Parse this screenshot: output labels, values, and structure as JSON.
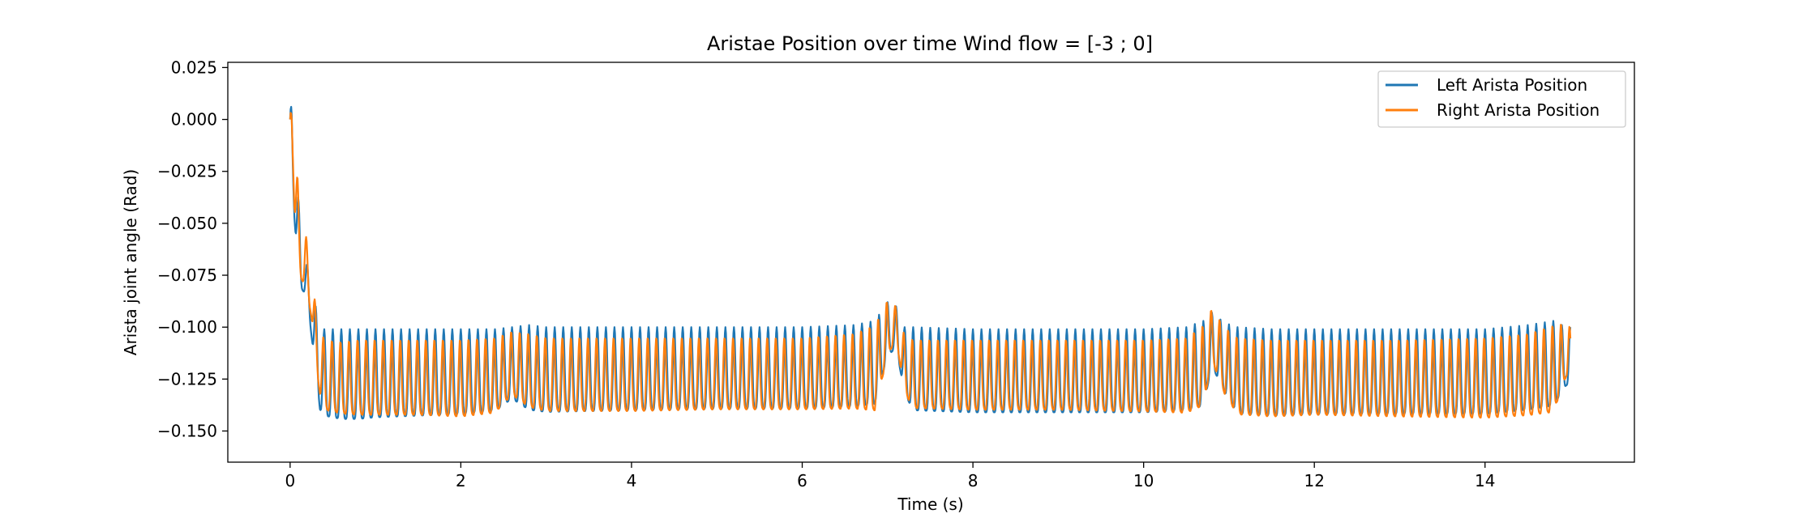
{
  "chart_data": {
    "type": "line",
    "title": "Aristae Position over time Wind flow = [-3 ; 0]",
    "xlabel": "Time (s)",
    "ylabel": "Arista joint angle (Rad)",
    "xlim": [
      -0.73,
      15.75
    ],
    "ylim": [
      -0.165,
      0.0275
    ],
    "xticks": [
      0,
      2,
      4,
      6,
      8,
      10,
      12,
      14
    ],
    "xtick_labels": [
      "0",
      "2",
      "4",
      "6",
      "8",
      "10",
      "12",
      "14"
    ],
    "yticks": [
      0.025,
      0.0,
      -0.025,
      -0.05,
      -0.075,
      -0.1,
      -0.125,
      -0.15
    ],
    "ytick_labels": [
      "0.025",
      "0.000",
      "−0.025",
      "−0.050",
      "−0.075",
      "−0.100",
      "−0.125",
      "−0.150"
    ],
    "grid": false,
    "legend_position": "top-right",
    "oscillation_period_s": 0.1,
    "series": [
      {
        "name": "Left Arista Position",
        "color": "#1f77b4",
        "envelope_time": [
          0.0,
          0.02,
          0.05,
          0.1,
          0.15,
          0.2,
          0.25,
          0.3,
          0.35,
          0.4,
          0.6,
          0.8,
          1.0,
          1.5,
          2.0,
          2.4,
          2.6,
          2.8,
          3.0,
          4.0,
          5.0,
          6.0,
          6.6,
          6.85,
          7.0,
          7.1,
          7.2,
          7.3,
          8.0,
          9.0,
          10.0,
          10.5,
          10.7,
          10.8,
          10.95,
          11.1,
          11.5,
          12.0,
          13.0,
          14.0,
          14.5,
          14.8,
          14.95,
          15.0
        ],
        "envelope_upper": [
          0.0,
          0.018,
          0.005,
          -0.04,
          -0.06,
          -0.07,
          -0.08,
          -0.09,
          -0.098,
          -0.101,
          -0.101,
          -0.101,
          -0.101,
          -0.101,
          -0.101,
          -0.101,
          -0.1,
          -0.099,
          -0.1,
          -0.1,
          -0.1,
          -0.1,
          -0.099,
          -0.097,
          -0.088,
          -0.09,
          -0.1,
          -0.1,
          -0.101,
          -0.101,
          -0.101,
          -0.1,
          -0.097,
          -0.093,
          -0.098,
          -0.1,
          -0.101,
          -0.101,
          -0.101,
          -0.101,
          -0.099,
          -0.097,
          -0.1,
          -0.1
        ],
        "envelope_lower": [
          0.0,
          -0.02,
          -0.06,
          -0.09,
          -0.088,
          -0.09,
          -0.11,
          -0.13,
          -0.15,
          -0.153,
          -0.155,
          -0.155,
          -0.154,
          -0.153,
          -0.152,
          -0.15,
          -0.143,
          -0.15,
          -0.151,
          -0.15,
          -0.149,
          -0.149,
          -0.148,
          -0.147,
          -0.12,
          -0.115,
          -0.14,
          -0.15,
          -0.151,
          -0.151,
          -0.151,
          -0.15,
          -0.148,
          -0.125,
          -0.14,
          -0.152,
          -0.153,
          -0.152,
          -0.152,
          -0.152,
          -0.15,
          -0.148,
          -0.135,
          -0.135
        ]
      },
      {
        "name": "Right Arista Position",
        "color": "#ff7f0e",
        "envelope_time": [
          0.0,
          0.02,
          0.05,
          0.1,
          0.15,
          0.2,
          0.25,
          0.3,
          0.35,
          0.4,
          0.6,
          0.8,
          1.0,
          1.5,
          2.0,
          2.4,
          2.6,
          2.8,
          3.0,
          4.0,
          5.0,
          6.0,
          6.6,
          6.85,
          7.0,
          7.1,
          7.2,
          7.3,
          8.0,
          9.0,
          10.0,
          10.5,
          10.7,
          10.8,
          10.95,
          11.1,
          11.5,
          12.0,
          13.0,
          14.0,
          14.5,
          14.8,
          14.95,
          15.0
        ],
        "envelope_upper": [
          0.0,
          0.02,
          0.008,
          -0.04,
          -0.045,
          -0.06,
          -0.075,
          -0.09,
          -0.1,
          -0.106,
          -0.107,
          -0.106,
          -0.106,
          -0.106,
          -0.106,
          -0.105,
          -0.102,
          -0.103,
          -0.105,
          -0.105,
          -0.105,
          -0.105,
          -0.103,
          -0.099,
          -0.087,
          -0.09,
          -0.104,
          -0.106,
          -0.106,
          -0.106,
          -0.106,
          -0.105,
          -0.099,
          -0.091,
          -0.1,
          -0.105,
          -0.106,
          -0.106,
          -0.106,
          -0.105,
          -0.103,
          -0.099,
          -0.098,
          -0.1
        ],
        "envelope_lower": [
          0.0,
          -0.01,
          -0.055,
          -0.085,
          -0.086,
          -0.09,
          -0.1,
          -0.125,
          -0.14,
          -0.148,
          -0.15,
          -0.151,
          -0.151,
          -0.151,
          -0.152,
          -0.15,
          -0.14,
          -0.147,
          -0.149,
          -0.149,
          -0.148,
          -0.148,
          -0.148,
          -0.15,
          -0.12,
          -0.11,
          -0.138,
          -0.147,
          -0.148,
          -0.148,
          -0.149,
          -0.15,
          -0.147,
          -0.122,
          -0.14,
          -0.151,
          -0.152,
          -0.151,
          -0.152,
          -0.153,
          -0.152,
          -0.151,
          -0.13,
          -0.138
        ]
      }
    ]
  }
}
